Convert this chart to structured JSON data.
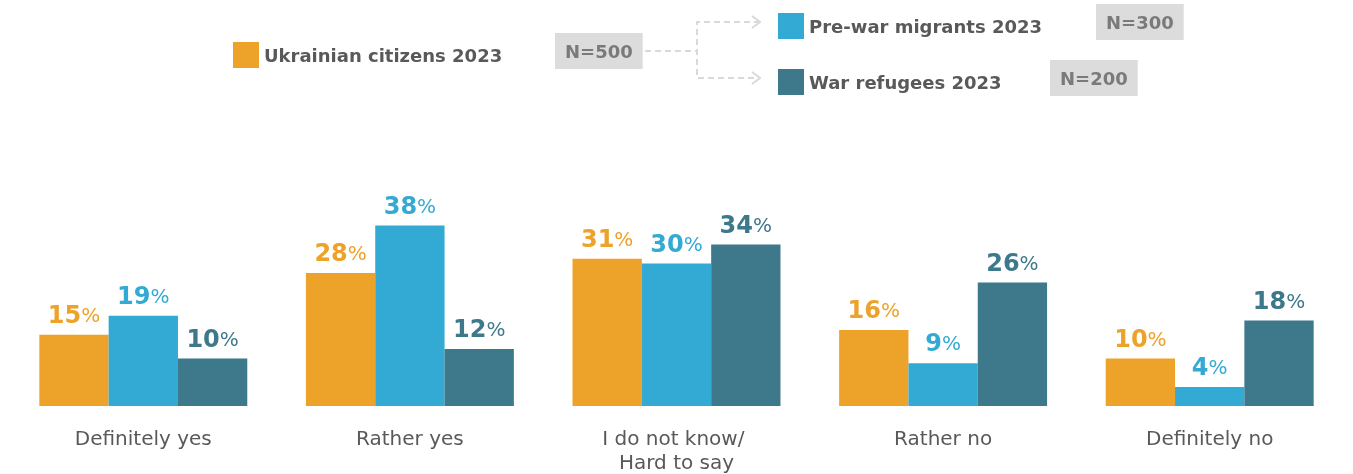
{
  "chart_data": {
    "type": "bar",
    "categories": [
      "Definitely yes",
      "Rather yes",
      "I do not know/ Hard to say",
      "Rather no",
      "Definitely no"
    ],
    "series": [
      {
        "name": "Ukrainian citizens 2023",
        "color": "#eda229",
        "values": [
          15,
          28,
          31,
          16,
          10
        ],
        "value_labels": [
          "15%",
          "28%",
          "31%",
          "16%",
          "10%"
        ]
      },
      {
        "name": "Pre-war migrants 2023",
        "color": "#33aad4",
        "values": [
          19,
          38,
          30,
          9,
          4
        ],
        "value_labels": [
          "19%",
          "38%",
          "30%",
          "9%",
          "4%"
        ]
      },
      {
        "name": "War refugees 2023",
        "color": "#3d788b",
        "values": [
          10,
          12,
          34,
          26,
          18
        ],
        "value_labels": [
          "10%",
          "12%",
          "34%",
          "26%",
          "18%"
        ]
      }
    ],
    "annotations": [
      "N=500",
      "N=300",
      "N=200"
    ],
    "legend": "top",
    "grid": false
  }
}
